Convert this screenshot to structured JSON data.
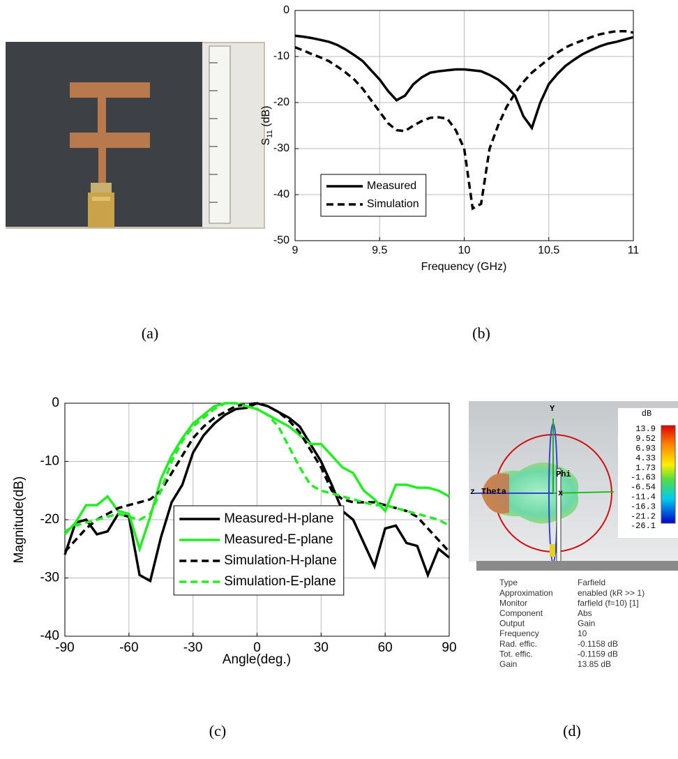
{
  "chart_data": [
    {
      "type": "line",
      "xlabel": "Frequency (GHz)",
      "ylabel": [
        "S",
        "11",
        " (dB)"
      ],
      "x": [
        9,
        9.05,
        9.1,
        9.15,
        9.2,
        9.25,
        9.3,
        9.35,
        9.4,
        9.45,
        9.5,
        9.55,
        9.6,
        9.65,
        9.7,
        9.75,
        9.8,
        9.85,
        9.9,
        9.95,
        10,
        10.05,
        10.1,
        10.15,
        10.2,
        10.25,
        10.3,
        10.35,
        10.4,
        10.45,
        10.5,
        10.55,
        10.6,
        10.65,
        10.7,
        10.75,
        10.8,
        10.85,
        10.9,
        10.95,
        11
      ],
      "series": [
        {
          "name": "Measured",
          "color": "#000000",
          "style": "solid",
          "values": [
            -5.5,
            -5.7,
            -6,
            -6.4,
            -6.8,
            -7.5,
            -8.5,
            -9.7,
            -11,
            -13,
            -15,
            -17.5,
            -19.5,
            -18.5,
            -16,
            -14.5,
            -13.5,
            -13.2,
            -13,
            -12.8,
            -12.8,
            -13,
            -13.2,
            -14,
            -15,
            -16.5,
            -18.5,
            -23,
            -25.5,
            -20,
            -16,
            -13.8,
            -12,
            -10.7,
            -9.5,
            -8.6,
            -7.8,
            -7.2,
            -6.8,
            -6.3,
            -5.8
          ]
        },
        {
          "name": "Simulation",
          "color": "#000000",
          "style": "dashed",
          "values": [
            -8,
            -8.7,
            -9.5,
            -10.2,
            -11,
            -12.2,
            -13.5,
            -15,
            -17,
            -19.5,
            -22,
            -24.5,
            -26,
            -26.2,
            -25,
            -24,
            -23.3,
            -23.2,
            -23.5,
            -26,
            -30,
            -43,
            -42,
            -30,
            -25,
            -21,
            -18,
            -15.5,
            -13.5,
            -12,
            -10.5,
            -9.2,
            -8,
            -7.2,
            -6.5,
            -5.8,
            -5.2,
            -4.8,
            -4.5,
            -4.5,
            -4.8
          ]
        }
      ],
      "xlim": [
        9,
        11
      ],
      "xticks": [
        9,
        9.5,
        10,
        10.5,
        11
      ],
      "ylim": [
        -50,
        0
      ],
      "yticks": [
        0,
        -10,
        -20,
        -30,
        -40,
        -50
      ],
      "grid": true,
      "legend": "lower left"
    },
    {
      "type": "line",
      "xlabel": "Angle(deg.)",
      "ylabel": [
        "Magnitude(dB)"
      ],
      "x": [
        -90,
        -85,
        -80,
        -75,
        -70,
        -65,
        -60,
        -55,
        -50,
        -45,
        -40,
        -35,
        -30,
        -25,
        -20,
        -15,
        -10,
        -5,
        0,
        5,
        10,
        15,
        20,
        25,
        30,
        35,
        40,
        45,
        50,
        55,
        60,
        65,
        70,
        75,
        80,
        85,
        90
      ],
      "series": [
        {
          "name": "Measured-H-plane",
          "color": "#000000",
          "style": "solid",
          "values": [
            -26,
            -20.5,
            -20,
            -22.5,
            -22,
            -19,
            -19.5,
            -29.5,
            -30.5,
            -23,
            -17,
            -14,
            -8.5,
            -5.5,
            -3.5,
            -2,
            -1,
            -0.8,
            0,
            -0.5,
            -1.5,
            -2.5,
            -4,
            -7,
            -10,
            -14,
            -18.5,
            -20,
            -24,
            -28,
            -21.5,
            -21,
            -24,
            -24.5,
            -29.5,
            -25,
            -26.5
          ]
        },
        {
          "name": "Measured-E-plane",
          "color": "#22ee22",
          "style": "solid",
          "values": [
            -22.5,
            -20.5,
            -17.5,
            -17.5,
            -16,
            -18.5,
            -19,
            -25,
            -19.5,
            -13,
            -9,
            -6,
            -3.5,
            -2,
            -0.5,
            0,
            0,
            -0.5,
            -1,
            -2,
            -3,
            -4,
            -5.5,
            -7,
            -7,
            -9,
            -11,
            -12,
            -15,
            -16.5,
            -18.5,
            -14,
            -14,
            -14.5,
            -14.5,
            -15,
            -16
          ]
        },
        {
          "name": "Simulation-H-plane",
          "color": "#000000",
          "style": "dashed",
          "values": [
            -25.5,
            -23.5,
            -21.5,
            -20,
            -19,
            -18,
            -17.5,
            -17,
            -16.5,
            -15,
            -12,
            -9,
            -6,
            -4,
            -2.5,
            -1.5,
            -0.5,
            -0.2,
            0,
            -0.5,
            -1.5,
            -3,
            -5,
            -8,
            -11,
            -15,
            -16.5,
            -17,
            -17,
            -17,
            -17.5,
            -18,
            -18.5,
            -19.5,
            -21.5,
            -23.5,
            -25.5
          ]
        },
        {
          "name": "Simulation-E-plane",
          "color": "#22ee22",
          "style": "dashed",
          "values": [
            -22,
            -21,
            -20.5,
            -20,
            -19.5,
            -19,
            -19.5,
            -20,
            -19,
            -15,
            -10,
            -6.5,
            -4,
            -2.5,
            -1,
            0,
            0,
            -0.5,
            -1,
            -2,
            -4,
            -7.5,
            -11,
            -14,
            -15,
            -15.5,
            -16,
            -16.5,
            -17,
            -17.5,
            -17.5,
            -18,
            -18.5,
            -19,
            -19.5,
            -20,
            -21
          ]
        }
      ],
      "xlim": [
        -90,
        90
      ],
      "xticks": [
        -90,
        -60,
        -30,
        0,
        30,
        60,
        90
      ],
      "ylim": [
        -40,
        0
      ],
      "yticks": [
        0,
        -10,
        -20,
        -30,
        -40
      ],
      "grid": true,
      "legend": "lower center"
    }
  ],
  "captions": [
    "(a)",
    "(b)",
    "(c)",
    "(d)"
  ],
  "farfield": {
    "axis_labels": {
      "y": "Y",
      "z": "z",
      "theta": "Theta",
      "phi": "Phi",
      "x": "x"
    },
    "colorbar": {
      "unit": "dB",
      "labels": [
        "13.9",
        "9.52",
        "6.93",
        "4.33",
        "1.73",
        "-1.63",
        "-6.54",
        "-11.4",
        "-16.3",
        "-21.2",
        "-26.1"
      ]
    },
    "properties": [
      [
        "Type",
        "Farfield"
      ],
      [
        "Approximation",
        "enabled (kR >> 1)"
      ],
      [
        "Monitor",
        "farfield (f=10) [1]"
      ],
      [
        "Component",
        "Abs"
      ],
      [
        "Output",
        "Gain"
      ],
      [
        "Frequency",
        "10"
      ],
      [
        "Rad. effic.",
        "-0.1158 dB"
      ],
      [
        "Tot. effic.",
        "-0.1159 dB"
      ],
      [
        "Gain",
        "13.85 dB"
      ]
    ]
  }
}
